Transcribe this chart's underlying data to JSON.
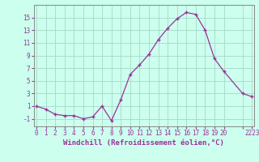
{
  "x": [
    0,
    1,
    2,
    3,
    4,
    5,
    6,
    7,
    8,
    9,
    10,
    11,
    12,
    13,
    14,
    15,
    16,
    17,
    18,
    19,
    20,
    22,
    23
  ],
  "y": [
    1,
    0.5,
    -0.3,
    -0.5,
    -0.5,
    -1,
    -0.7,
    1,
    -1.3,
    2,
    6,
    7.5,
    9.2,
    11.5,
    13.3,
    14.8,
    15.8,
    15.5,
    13,
    8.5,
    6.5,
    3,
    2.5
  ],
  "line_color": "#993399",
  "marker": "+",
  "bg_color": "#ccffee",
  "grid_color": "#aaddcc",
  "axis_label_color": "#993399",
  "xlabel": "Windchill (Refroidissement éolien,°C)",
  "xtick_labels": [
    "0",
    "1",
    "2",
    "3",
    "4",
    "5",
    "6",
    "7",
    "8",
    "9",
    "10",
    "11",
    "12",
    "13",
    "14",
    "15",
    "16",
    "17",
    "18",
    "19",
    "20",
    "",
    "2223"
  ],
  "yticks": [
    -1,
    1,
    3,
    5,
    7,
    9,
    11,
    13,
    15
  ],
  "ylim": [
    -2.2,
    17
  ],
  "xlim": [
    -0.3,
    23.2
  ],
  "spine_color": "#888888",
  "tick_fontsize": 5.5,
  "xlabel_fontsize": 6.5
}
